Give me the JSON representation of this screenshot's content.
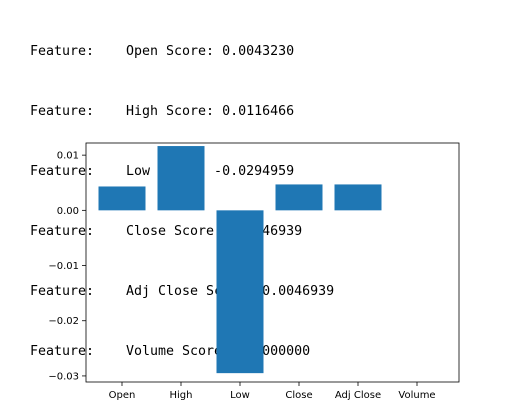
{
  "output_lines": [
    {
      "label": "Feature:",
      "text": "Open Score: 0.0043230"
    },
    {
      "label": "Feature:",
      "text": "High Score: 0.0116466"
    },
    {
      "label": "Feature:",
      "text": "Low Score: -0.0294959"
    },
    {
      "label": "Feature:",
      "text": "Close Score: 0.0046939"
    },
    {
      "label": "Feature:",
      "text": "Adj Close Score: 0.0046939"
    },
    {
      "label": "Feature:",
      "text": "Volume Score: 0.0000000"
    }
  ],
  "chart_data": {
    "type": "bar",
    "categories": [
      "Open",
      "High",
      "Low",
      "Close",
      "Adj Close",
      "Volume"
    ],
    "values": [
      0.004323,
      0.0116466,
      -0.0294959,
      0.0046939,
      0.0046939,
      0.0
    ],
    "yticks": [
      0.01,
      0.0,
      -0.01,
      -0.02,
      -0.03
    ],
    "ytick_labels": [
      "0.01",
      "0.00",
      "−0.01",
      "−0.02",
      "−0.03"
    ],
    "ylim": [
      -0.0311,
      0.0122
    ],
    "bar_color": "#1f77b4",
    "grid": false,
    "title": "",
    "xlabel": "",
    "ylabel": ""
  }
}
